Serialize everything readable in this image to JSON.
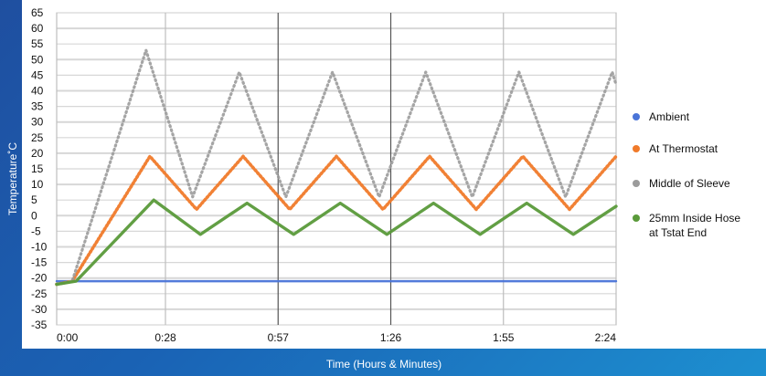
{
  "chart_data": {
    "type": "line",
    "xlabel": "Time (Hours & Minutes)",
    "ylabel": "Temperature˚C",
    "x_tick_labels": [
      "0:00",
      "0:28",
      "0:57",
      "1:26",
      "1:55",
      "2:24"
    ],
    "x_tick_minutes": [
      0,
      28,
      57,
      86,
      115,
      144
    ],
    "xlim_minutes": [
      0,
      144
    ],
    "ylim": [
      -35,
      65
    ],
    "y_ticks": [
      65,
      60,
      55,
      50,
      45,
      40,
      35,
      30,
      25,
      20,
      15,
      10,
      5,
      0,
      -5,
      -10,
      -15,
      -20,
      -25,
      -30,
      -35
    ],
    "grid": true,
    "legend_position": "right",
    "series": [
      {
        "name": "Ambient",
        "color": "#4a74d8",
        "style": "solid",
        "x_minutes": [
          0,
          144
        ],
        "values": [
          -21,
          -21
        ]
      },
      {
        "name": "At Thermostat",
        "color": "#f07a2a",
        "style": "dotted",
        "x_minutes": [
          0,
          4,
          24,
          36,
          48,
          60,
          72,
          84,
          96,
          108,
          120,
          132,
          144
        ],
        "values": [
          -22,
          -21,
          19,
          2,
          19,
          2,
          19,
          2,
          19,
          2,
          19,
          2,
          19
        ]
      },
      {
        "name": "Middle of Sleeve",
        "color": "#9b9b9b",
        "style": "dotted",
        "x_minutes": [
          0,
          4,
          23,
          35,
          47,
          59,
          71,
          83,
          95,
          107,
          119,
          131,
          143,
          144
        ],
        "values": [
          -22,
          -21,
          53,
          6,
          46,
          6,
          46,
          6,
          46,
          6,
          46,
          6,
          46,
          42
        ],
        "values_note": ""
      },
      {
        "name": "25mm Inside Hose at Tstat End",
        "color": "#5a9a3a",
        "style": "solid",
        "x_minutes": [
          0,
          5,
          25,
          37,
          49,
          61,
          73,
          85,
          97,
          109,
          121,
          133,
          144
        ],
        "values": [
          -22,
          -21,
          5,
          -6,
          4,
          -6,
          4,
          -6,
          4,
          -6,
          4,
          -6,
          3
        ]
      }
    ]
  },
  "legend": {
    "line1": [
      "Ambient",
      "At Thermostat",
      "Middle of Sleeve",
      "25mm Inside Hose"
    ],
    "line2": "at Tstat End"
  }
}
